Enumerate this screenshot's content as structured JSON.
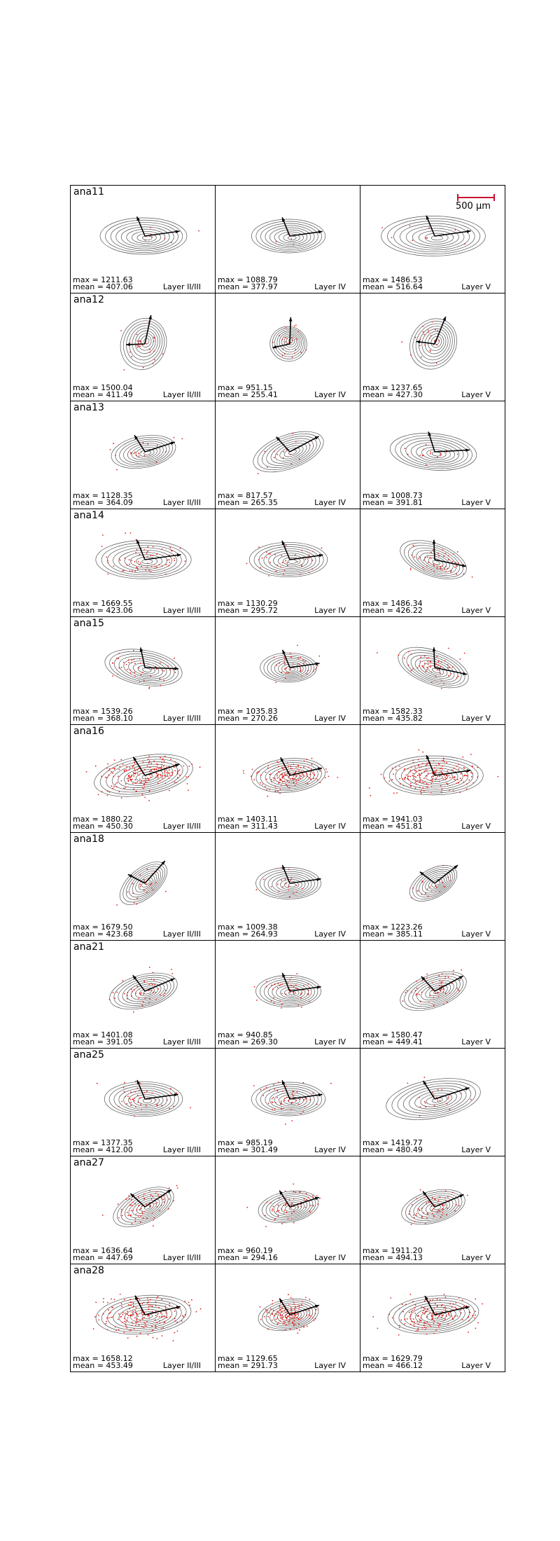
{
  "figure": {
    "scale_bar": {
      "label": "500 μm",
      "color": "#c8102e"
    },
    "colors": {
      "contour": "#555555",
      "points": "#e3201b",
      "arrows": "#000000"
    },
    "columns": [
      "Layer II/III",
      "Layer IV",
      "Layer V"
    ],
    "stat_labels": {
      "max": "max = ",
      "mean": "mean = "
    }
  },
  "chart_data": {
    "type": "contour-scatter-grid",
    "rows": [
      {
        "name": "ana11",
        "cells": [
          {
            "layer": "Layer II/III",
            "max": "1211.63",
            "mean": "407.06",
            "points": 8,
            "spread": 1.0,
            "tilt": 0
          },
          {
            "layer": "Layer IV",
            "max": "1088.79",
            "mean": "377.97",
            "points": 4,
            "spread": 0.85,
            "tilt": 0
          },
          {
            "layer": "Layer V",
            "max": "1486.53",
            "mean": "516.64",
            "points": 10,
            "spread": 1.2,
            "tilt": 0
          }
        ]
      },
      {
        "name": "ana12",
        "cells": [
          {
            "layer": "Layer II/III",
            "max": "1500.04",
            "mean": "411.49",
            "points": 30,
            "spread": 0.6,
            "tilt": -70
          },
          {
            "layer": "Layer IV",
            "max": "951.15",
            "mean": "255.41",
            "points": 25,
            "spread": 0.4,
            "tilt": -80
          },
          {
            "layer": "Layer V",
            "max": "1237.65",
            "mean": "427.30",
            "points": 25,
            "spread": 0.6,
            "tilt": -60
          }
        ]
      },
      {
        "name": "ana13",
        "cells": [
          {
            "layer": "Layer II/III",
            "max": "1128.35",
            "mean": "364.09",
            "points": 20,
            "spread": 0.75,
            "tilt": -10
          },
          {
            "layer": "Layer IV",
            "max": "817.57",
            "mean": "265.35",
            "points": 15,
            "spread": 0.85,
            "tilt": -20
          },
          {
            "layer": "Layer V",
            "max": "1008.73",
            "mean": "391.81",
            "points": 15,
            "spread": 1.0,
            "tilt": 5
          }
        ]
      },
      {
        "name": "ana14",
        "cells": [
          {
            "layer": "Layer II/III",
            "max": "1669.55",
            "mean": "423.06",
            "points": 70,
            "spread": 1.1,
            "tilt": 0
          },
          {
            "layer": "Layer IV",
            "max": "1130.29",
            "mean": "295.72",
            "points": 40,
            "spread": 0.9,
            "tilt": 0
          },
          {
            "layer": "Layer V",
            "max": "1486.34",
            "mean": "426.22",
            "points": 60,
            "spread": 0.8,
            "tilt": 20
          }
        ]
      },
      {
        "name": "ana15",
        "cells": [
          {
            "layer": "Layer II/III",
            "max": "1539.26",
            "mean": "368.10",
            "points": 50,
            "spread": 0.9,
            "tilt": 10
          },
          {
            "layer": "Layer IV",
            "max": "1035.83",
            "mean": "270.26",
            "points": 40,
            "spread": 0.65,
            "tilt": 0
          },
          {
            "layer": "Layer V",
            "max": "1582.33",
            "mean": "435.82",
            "points": 60,
            "spread": 0.85,
            "tilt": 20
          }
        ]
      },
      {
        "name": "ana16",
        "cells": [
          {
            "layer": "Layer II/III",
            "max": "1880.22",
            "mean": "450.30",
            "points": 220,
            "spread": 1.15,
            "tilt": -10
          },
          {
            "layer": "Layer IV",
            "max": "1403.11",
            "mean": "311.43",
            "points": 150,
            "spread": 0.85,
            "tilt": -5
          },
          {
            "layer": "Layer V",
            "max": "1941.03",
            "mean": "451.81",
            "points": 200,
            "spread": 1.15,
            "tilt": 0
          }
        ]
      },
      {
        "name": "ana18",
        "cells": [
          {
            "layer": "Layer II/III",
            "max": "1679.50",
            "mean": "423.68",
            "points": 25,
            "spread": 0.65,
            "tilt": -40
          },
          {
            "layer": "Layer IV",
            "max": "1009.38",
            "mean": "264.93",
            "points": 20,
            "spread": 0.75,
            "tilt": 0
          },
          {
            "layer": "Layer V",
            "max": "1223.26",
            "mean": "385.11",
            "points": 25,
            "spread": 0.6,
            "tilt": -30
          }
        ]
      },
      {
        "name": "ana21",
        "cells": [
          {
            "layer": "Layer II/III",
            "max": "1401.08",
            "mean": "391.05",
            "points": 50,
            "spread": 0.8,
            "tilt": -15
          },
          {
            "layer": "Layer IV",
            "max": "940.85",
            "mean": "269.30",
            "points": 50,
            "spread": 0.75,
            "tilt": 0
          },
          {
            "layer": "Layer V",
            "max": "1580.47",
            "mean": "449.41",
            "points": 60,
            "spread": 0.8,
            "tilt": -20
          }
        ]
      },
      {
        "name": "ana25",
        "cells": [
          {
            "layer": "Layer II/III",
            "max": "1377.35",
            "mean": "412.00",
            "points": 50,
            "spread": 0.9,
            "tilt": 0
          },
          {
            "layer": "Layer IV",
            "max": "985.19",
            "mean": "301.49",
            "points": 60,
            "spread": 0.85,
            "tilt": 0
          },
          {
            "layer": "Layer V",
            "max": "1419.77",
            "mean": "480.49",
            "points": 25,
            "spread": 1.1,
            "tilt": -10
          }
        ]
      },
      {
        "name": "ana27",
        "cells": [
          {
            "layer": "Layer II/III",
            "max": "1636.64",
            "mean": "447.69",
            "points": 80,
            "spread": 0.75,
            "tilt": -25
          },
          {
            "layer": "Layer IV",
            "max": "960.19",
            "mean": "294.16",
            "points": 70,
            "spread": 0.7,
            "tilt": -10
          },
          {
            "layer": "Layer V",
            "max": "1911.20",
            "mean": "494.13",
            "points": 70,
            "spread": 0.75,
            "tilt": -15
          }
        ]
      },
      {
        "name": "ana28",
        "cells": [
          {
            "layer": "Layer II/III",
            "max": "1658.12",
            "mean": "453.49",
            "points": 200,
            "spread": 1.1,
            "tilt": -5
          },
          {
            "layer": "Layer IV",
            "max": "1129.65",
            "mean": "291.73",
            "points": 150,
            "spread": 0.7,
            "tilt": -10
          },
          {
            "layer": "Layer V",
            "max": "1629.79",
            "mean": "466.12",
            "points": 180,
            "spread": 1.05,
            "tilt": -5
          }
        ]
      }
    ]
  }
}
